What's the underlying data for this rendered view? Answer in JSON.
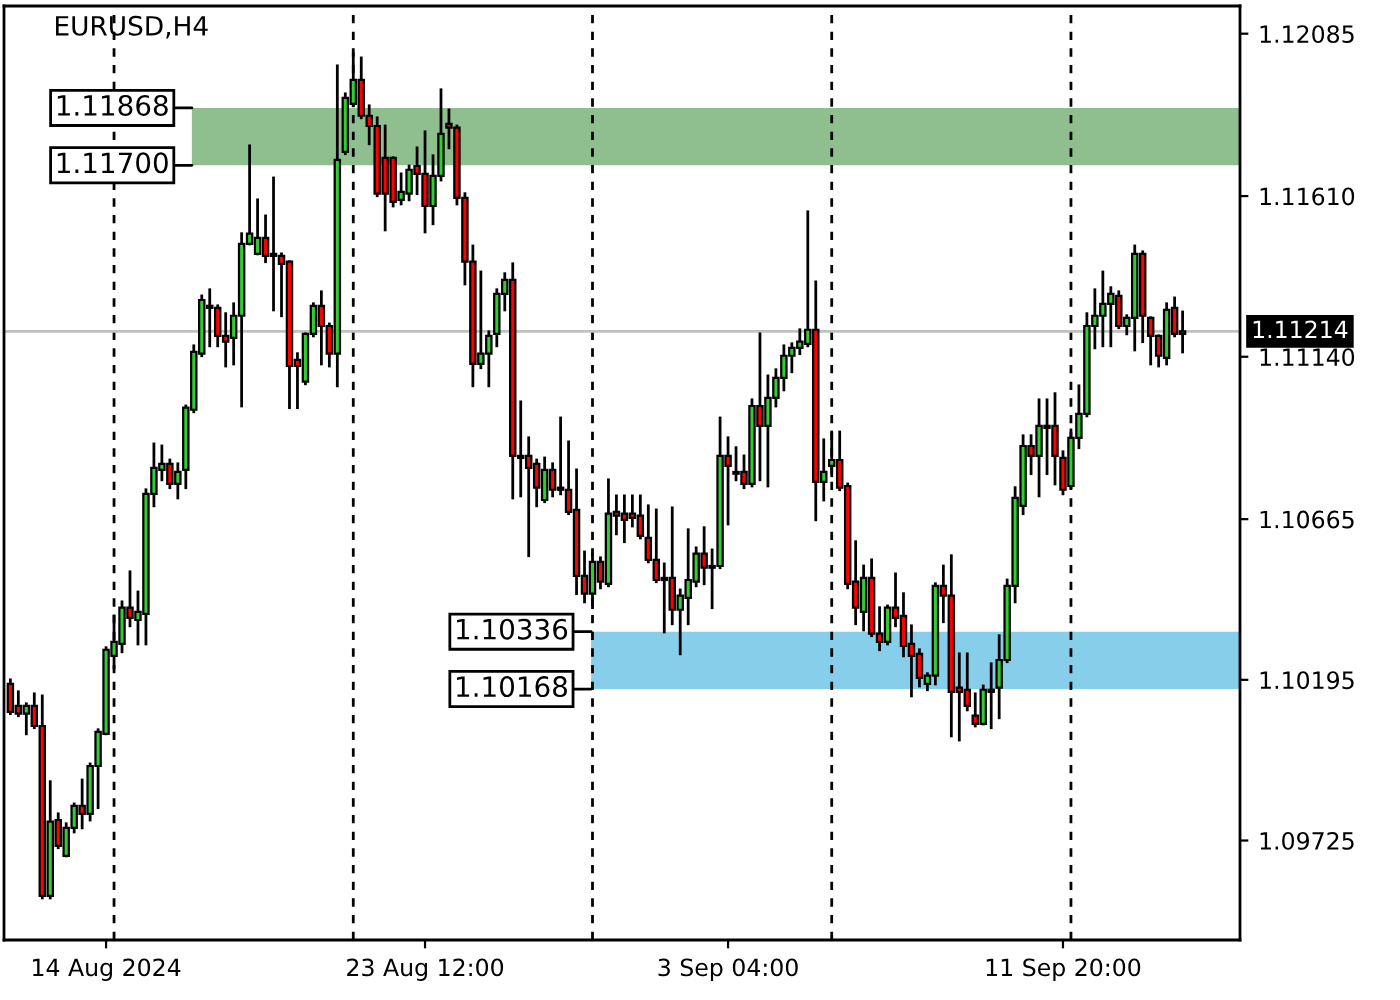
{
  "chart_data": {
    "type": "candlestick",
    "title": "EURUSD,H4",
    "categories": [
      null,
      null,
      null,
      null,
      null,
      null,
      null,
      null,
      null,
      null,
      null,
      null,
      "14 Aug 2024",
      null,
      null,
      null,
      null,
      null,
      null,
      null,
      null,
      null,
      null,
      null,
      null,
      null,
      null,
      null,
      null,
      null,
      null,
      null,
      null,
      null,
      null,
      null,
      null,
      null,
      null,
      null,
      null,
      null,
      null,
      null,
      null,
      null,
      null,
      null,
      null,
      null,
      null,
      null,
      "23 Aug 12:00",
      null,
      null,
      null,
      null,
      null,
      null,
      null,
      null,
      null,
      null,
      null,
      null,
      null,
      null,
      null,
      null,
      null,
      null,
      null,
      null,
      null,
      null,
      null,
      null,
      null,
      null,
      null,
      null,
      null,
      null,
      null,
      null,
      null,
      null,
      null,
      null,
      null,
      "3 Sep 04:00",
      null,
      null,
      null,
      null,
      null,
      null,
      null,
      null,
      null,
      null,
      null,
      null,
      null,
      null,
      null,
      null,
      null,
      null,
      null,
      null,
      null,
      null,
      null,
      null,
      null,
      null,
      null,
      null,
      null,
      null,
      null,
      null,
      null,
      null,
      null,
      null,
      null,
      null,
      null,
      null,
      null,
      "11 Sep 20:00",
      null,
      null,
      null,
      null,
      null,
      null,
      null,
      null,
      null,
      null,
      null,
      null,
      null,
      null,
      null
    ],
    "ohlc": [
      [
        1.10183,
        1.10195,
        1.10096,
        1.10101
      ],
      [
        1.10119,
        1.1016,
        1.1009,
        1.10096
      ],
      [
        1.10096,
        1.10125,
        1.10037,
        1.10119
      ],
      [
        1.10119,
        1.10154,
        1.10055,
        1.1006
      ],
      [
        1.1006,
        1.10148,
        1.09557,
        1.09563
      ],
      [
        1.09563,
        1.09897,
        1.09557,
        1.0978
      ],
      [
        1.09785,
        1.09803,
        1.09704,
        1.09709
      ],
      [
        1.0968,
        1.09774,
        1.0968,
        1.09762
      ],
      [
        1.09762,
        1.09832,
        1.0975,
        1.09826
      ],
      [
        1.09826,
        1.09902,
        1.09762,
        1.09803
      ],
      [
        1.09803,
        1.09949,
        1.09785,
        1.09943
      ],
      [
        1.09943,
        1.10049,
        1.09821,
        1.10043
      ],
      [
        1.10037,
        1.10289,
        1.10037,
        1.10283
      ],
      [
        1.10265,
        1.10382,
        1.1023,
        1.10306
      ],
      [
        1.103,
        1.10423,
        1.10277,
        1.10406
      ],
      [
        1.10406,
        1.10511,
        1.10353,
        1.10376
      ],
      [
        1.1037,
        1.10452,
        1.103,
        1.10394
      ],
      [
        1.10388,
        1.10751,
        1.103,
        1.10739
      ],
      [
        1.10739,
        1.10885,
        1.10704,
        1.10815
      ],
      [
        1.10809,
        1.10879,
        1.1078,
        1.10827
      ],
      [
        1.10827,
        1.10838,
        1.10757,
        1.10768
      ],
      [
        1.10768,
        1.10827,
        1.10727,
        1.10803
      ],
      [
        1.10809,
        1.10996,
        1.10757,
        1.10991
      ],
      [
        1.10985,
        1.11172,
        1.10979,
        1.11154
      ],
      [
        1.11149,
        1.11318,
        1.11143,
        1.11306
      ],
      [
        1.11289,
        1.11336,
        1.11172,
        1.11283
      ],
      [
        1.11283,
        1.11289,
        1.11172,
        1.11201
      ],
      [
        1.11201,
        1.11266,
        1.11113,
        1.11184
      ],
      [
        1.11195,
        1.11295,
        1.11119,
        1.1126
      ],
      [
        1.1126,
        1.115,
        1.10996,
        1.1147
      ],
      [
        1.1147,
        1.11757,
        1.1147,
        1.115
      ],
      [
        1.11441,
        1.11599,
        1.11441,
        1.11488
      ],
      [
        1.11488,
        1.11552,
        1.11418,
        1.11435
      ],
      [
        1.11441,
        1.11663,
        1.11277,
        1.11435
      ],
      [
        1.11435,
        1.11441,
        1.1126,
        1.11412
      ],
      [
        1.11418,
        1.11418,
        1.10991,
        1.11113
      ],
      [
        1.11131,
        1.11149,
        1.10991,
        1.11113
      ],
      [
        1.11067,
        1.11207,
        1.11061,
        1.11207
      ],
      [
        1.11207,
        1.11295,
        1.11201,
        1.11289
      ],
      [
        1.11289,
        1.1133,
        1.11119,
        1.1123
      ],
      [
        1.1123,
        1.11236,
        1.11113,
        1.11149
      ],
      [
        1.11149,
        1.11991,
        1.11055,
        1.11716
      ],
      [
        1.11739,
        1.11909,
        1.11734,
        1.11897
      ],
      [
        1.1188,
        1.12026,
        1.11874,
        1.1195
      ],
      [
        1.1195,
        1.12014,
        1.11839,
        1.11845
      ],
      [
        1.11845,
        1.11874,
        1.11763,
        1.11815
      ],
      [
        1.11815,
        1.11839,
        1.11611,
        1.11617
      ],
      [
        1.11722,
        1.11815,
        1.11511,
        1.11617
      ],
      [
        1.11722,
        1.11722,
        1.11581,
        1.11593
      ],
      [
        1.11599,
        1.11675,
        1.11587,
        1.11622
      ],
      [
        1.11617,
        1.11698,
        1.11599,
        1.11687
      ],
      [
        1.11698,
        1.11751,
        1.11617,
        1.11675
      ],
      [
        1.11675,
        1.11798,
        1.11505,
        1.11581
      ],
      [
        1.11581,
        1.11728,
        1.11529,
        1.11669
      ],
      [
        1.11669,
        1.11921,
        1.11657,
        1.11792
      ],
      [
        1.11821,
        1.11862,
        1.11751,
        1.1181
      ],
      [
        1.1181,
        1.11815,
        1.11587,
        1.11605
      ],
      [
        1.11605,
        1.11617,
        1.11353,
        1.11418
      ],
      [
        1.11418,
        1.11464,
        1.11055,
        1.11119
      ],
      [
        1.11119,
        1.11388,
        1.11108,
        1.11149
      ],
      [
        1.11149,
        1.11213,
        1.11055,
        1.11201
      ],
      [
        1.11207,
        1.11336,
        1.11172,
        1.11324
      ],
      [
        1.11324,
        1.11383,
        1.11277,
        1.11365
      ],
      [
        1.11365,
        1.11412,
        1.10727,
        1.1085
      ],
      [
        1.1085,
        1.11008,
        1.10733,
        1.10844
      ],
      [
        1.1085,
        1.10903,
        1.10558,
        1.10815
      ],
      [
        1.10827,
        1.10838,
        1.10704,
        1.10757
      ],
      [
        1.10721,
        1.10844,
        1.10716,
        1.10809
      ],
      [
        1.10809,
        1.10827,
        1.10733,
        1.10751
      ],
      [
        1.10757,
        1.10961,
        1.10739,
        1.10751
      ],
      [
        1.10751,
        1.10891,
        1.10681,
        1.10686
      ],
      [
        1.10692,
        1.10809,
        1.10447,
        1.10499
      ],
      [
        1.10499,
        1.10569,
        1.10423,
        1.10447
      ],
      [
        1.10447,
        1.10564,
        1.10406,
        1.1054
      ],
      [
        1.1054,
        1.10552,
        1.10464,
        1.10482
      ],
      [
        1.10476,
        1.1078,
        1.1047,
        1.10681
      ],
      [
        1.10686,
        1.10733,
        1.10622,
        1.10675
      ],
      [
        1.10681,
        1.10733,
        1.10599,
        1.10663
      ],
      [
        1.10681,
        1.10733,
        1.10645,
        1.10669
      ],
      [
        1.10675,
        1.10733,
        1.1061,
        1.10616
      ],
      [
        1.1061,
        1.10704,
        1.1054,
        1.10546
      ],
      [
        1.10546,
        1.10692,
        1.10482,
        1.10487
      ],
      [
        1.10493,
        1.10534,
        1.10335,
        1.10487
      ],
      [
        1.10493,
        1.10698,
        1.10359,
        1.104
      ],
      [
        1.104,
        1.10458,
        1.10271,
        1.10441
      ],
      [
        1.10435,
        1.10634,
        1.10359,
        1.10487
      ],
      [
        1.10482,
        1.10581,
        1.1047,
        1.10564
      ],
      [
        1.10564,
        1.1064,
        1.10476,
        1.10523
      ],
      [
        1.10528,
        1.10575,
        1.10406,
        1.10523
      ],
      [
        1.10528,
        1.10961,
        1.10523,
        1.1085
      ],
      [
        1.1085,
        1.10903,
        1.10651,
        1.10821
      ],
      [
        1.10803,
        1.10874,
        1.1078,
        1.10798
      ],
      [
        1.10803,
        1.1085,
        1.10757,
        1.10768
      ],
      [
        1.10768,
        1.11014,
        1.10762,
        1.10996
      ],
      [
        1.10996,
        1.11207,
        1.1078,
        1.10938
      ],
      [
        1.10938,
        1.11084,
        1.10762,
        1.1102
      ],
      [
        1.1102,
        1.11102,
        1.10996,
        1.11078
      ],
      [
        1.11078,
        1.11172,
        1.11043,
        1.11143
      ],
      [
        1.11143,
        1.11178,
        1.11096,
        1.11166
      ],
      [
        1.11166,
        1.11219,
        1.11149,
        1.11184
      ],
      [
        1.11178,
        1.11564,
        1.11172,
        1.11219
      ],
      [
        1.11219,
        1.11359,
        1.10663,
        1.10774
      ],
      [
        1.10774,
        1.10897,
        1.10721,
        1.10803
      ],
      [
        1.10821,
        1.1092,
        1.10792,
        1.10838
      ],
      [
        1.10838,
        1.1092,
        1.10751,
        1.10757
      ],
      [
        1.10762,
        1.10768,
        1.10464,
        1.10476
      ],
      [
        1.10482,
        1.10599,
        1.10359,
        1.10406
      ],
      [
        1.10394,
        1.10528,
        1.10341,
        1.10493
      ],
      [
        1.10493,
        1.10546,
        1.10324,
        1.1033
      ],
      [
        1.1033,
        1.10406,
        1.10283,
        1.10306
      ],
      [
        1.10306,
        1.10411,
        1.103,
        1.10406
      ],
      [
        1.10406,
        1.10505,
        1.10353,
        1.10376
      ],
      [
        1.10382,
        1.10447,
        1.10265,
        1.10294
      ],
      [
        1.103,
        1.10353,
        1.10148,
        1.10265
      ],
      [
        1.10271,
        1.10283,
        1.10177,
        1.10201
      ],
      [
        1.10183,
        1.10213,
        1.10166,
        1.10207
      ],
      [
        1.10207,
        1.10476,
        1.10183,
        1.1047
      ],
      [
        1.1047,
        1.10528,
        1.10365,
        1.10441
      ],
      [
        1.10441,
        1.10558,
        1.10031,
        1.1016
      ],
      [
        1.10172,
        1.10271,
        1.10019,
        1.1016
      ],
      [
        1.10166,
        1.10271,
        1.10107,
        1.10119
      ],
      [
        1.1009,
        1.10154,
        1.1006,
        1.10066
      ],
      [
        1.10066,
        1.10177,
        1.10066,
        1.10166
      ],
      [
        1.1016,
        1.10242,
        1.10055,
        1.10166
      ],
      [
        1.10172,
        1.10324,
        1.10084,
        1.10253
      ],
      [
        1.10253,
        1.10487,
        1.10248,
        1.1047
      ],
      [
        1.1047,
        1.10757,
        1.10423,
        1.10727
      ],
      [
        1.10704,
        1.10909,
        1.10681,
        1.10879
      ],
      [
        1.10879,
        1.10909,
        1.10798,
        1.1085
      ],
      [
        1.1085,
        1.11014,
        1.10733,
        1.10938
      ],
      [
        1.10938,
        1.11014,
        1.10798,
        1.10932
      ],
      [
        1.10938,
        1.11032,
        1.10768,
        1.1085
      ],
      [
        1.10844,
        1.10862,
        1.10739,
        1.10751
      ],
      [
        1.10762,
        1.10926,
        1.10757,
        1.10903
      ],
      [
        1.10903,
        1.11055,
        1.10874,
        1.10973
      ],
      [
        1.10973,
        1.11266,
        1.10967,
        1.1123
      ],
      [
        1.1123,
        1.11336,
        1.11166,
        1.1126
      ],
      [
        1.1126,
        1.11388,
        1.11172,
        1.11295
      ],
      [
        1.11295,
        1.11342,
        1.11172,
        1.11324
      ],
      [
        1.11318,
        1.1133,
        1.11225,
        1.1123
      ],
      [
        1.1123,
        1.1126,
        1.11207,
        1.11254
      ],
      [
        1.11254,
        1.11464,
        1.1116,
        1.11441
      ],
      [
        1.11441,
        1.11447,
        1.11184,
        1.1126
      ],
      [
        1.11254,
        1.11254,
        1.11119,
        1.11201
      ],
      [
        1.11201,
        1.11201,
        1.11113,
        1.11143
      ],
      [
        1.11137,
        1.11295,
        1.11119,
        1.11277
      ],
      [
        1.11283,
        1.11312,
        1.11201,
        1.11207
      ],
      [
        1.11207,
        1.11271,
        1.11154,
        1.11214
      ]
    ],
    "ylim": [
      1.09434,
      1.12166
    ],
    "yticks": [
      {
        "value": 1.09725,
        "label": "1.09725"
      },
      {
        "value": 1.10195,
        "label": "1.10195"
      },
      {
        "value": 1.10665,
        "label": "1.10665"
      },
      {
        "value": 1.1114,
        "label": "1.11140"
      },
      {
        "value": 1.1161,
        "label": "1.11610"
      },
      {
        "value": 1.12085,
        "label": "1.12085"
      }
    ],
    "bands": [
      {
        "axis": "y",
        "from": 1.117,
        "to": 1.11868,
        "color": "#8fbf8f"
      },
      {
        "axis": "y",
        "from": 1.10168,
        "to": 1.10336,
        "color": "#87ceeb"
      }
    ],
    "ref_lines": [
      {
        "axis": "y",
        "value": 1.11214,
        "label": "1.11214",
        "color": "#c0c0c0",
        "line_style": "solid"
      }
    ],
    "annotations": [
      "1.11868",
      "1.11700",
      "1.10336",
      "1.10168"
    ],
    "grid": false,
    "legend": false
  }
}
